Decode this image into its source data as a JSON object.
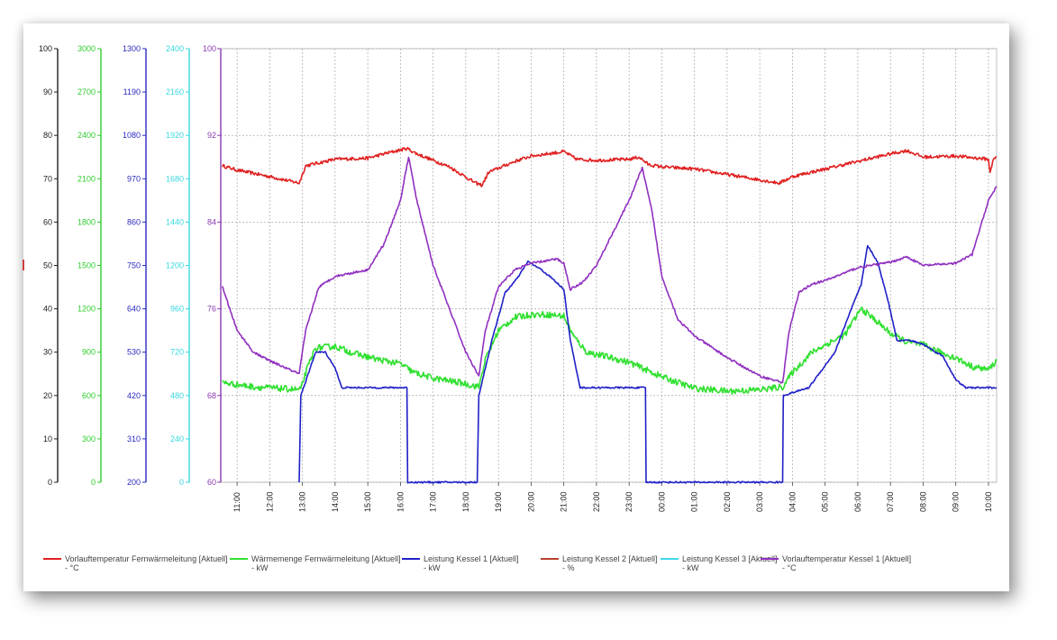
{
  "colors": {
    "grid": "#9a9a9a",
    "plot_border": "#b48bc8",
    "background": "#ffffff"
  },
  "chart_data": {
    "type": "line",
    "grid": true,
    "legend_position": "bottom",
    "x_unit": "hour",
    "x_range": [
      10.5,
      34.25
    ],
    "x_ticks": [
      "11:00",
      "12:00",
      "13:00",
      "14:00",
      "15:00",
      "16:00",
      "17:00",
      "18:00",
      "19:00",
      "20:00",
      "21:00",
      "22:00",
      "23:00",
      "00:00",
      "01:00",
      "02:00",
      "03:00",
      "04:00",
      "05:00",
      "06:00",
      "07:00",
      "08:00",
      "09:00",
      "10:00"
    ],
    "axes": [
      {
        "id": "a1",
        "color": "#202020",
        "range": [
          0,
          100
        ],
        "ticks": [
          "100",
          "90",
          "80",
          "70",
          "60",
          "50",
          "40",
          "30",
          "20",
          "10",
          "0"
        ]
      },
      {
        "id": "a2",
        "color": "#2ecc2e",
        "range": [
          0,
          3000
        ],
        "ticks": [
          "3000",
          "2700",
          "2400",
          "2100",
          "1800",
          "1500",
          "1200",
          "900",
          "600",
          "300",
          "0"
        ]
      },
      {
        "id": "a3",
        "color": "#2a2ac0",
        "range": [
          200,
          1300
        ],
        "ticks": [
          "1300",
          "1190",
          "1080",
          "970",
          "860",
          "750",
          "640",
          "530",
          "420",
          "310",
          "200"
        ]
      },
      {
        "id": "a4",
        "color": "#38d8e0",
        "range": [
          0,
          2400
        ],
        "ticks": [
          "2400",
          "2160",
          "1920",
          "1680",
          "1440",
          "1200",
          "960",
          "720",
          "480",
          "240",
          "0"
        ]
      },
      {
        "id": "a5",
        "color": "#8a3ab0",
        "range": [
          60,
          100
        ],
        "ticks": [
          "100",
          "92",
          "84",
          "76",
          "68",
          "60"
        ]
      }
    ],
    "series": [
      {
        "name": "Vorlauftemperatur Fernwärmeleitung [Aktuell]",
        "unit": "- °C",
        "color": "#e02020",
        "axis": "a5",
        "noise": 0.15,
        "points": [
          [
            10.55,
            89.2
          ],
          [
            11.0,
            88.8
          ],
          [
            12.0,
            88.2
          ],
          [
            12.9,
            87.6
          ],
          [
            13.1,
            89.2
          ],
          [
            14.0,
            89.8
          ],
          [
            15.0,
            89.9
          ],
          [
            15.5,
            90.3
          ],
          [
            16.2,
            90.8
          ],
          [
            16.5,
            90.3
          ],
          [
            17.5,
            89.1
          ],
          [
            18.3,
            87.6
          ],
          [
            18.5,
            87.4
          ],
          [
            18.7,
            88.6
          ],
          [
            19.5,
            89.6
          ],
          [
            20.0,
            90.1
          ],
          [
            21.0,
            90.5
          ],
          [
            21.4,
            89.8
          ],
          [
            22.0,
            89.7
          ],
          [
            23.0,
            89.8
          ],
          [
            23.3,
            90.0
          ],
          [
            23.6,
            89.3
          ],
          [
            24.0,
            89.1
          ],
          [
            25.0,
            88.9
          ],
          [
            26.0,
            88.4
          ],
          [
            27.0,
            87.9
          ],
          [
            27.6,
            87.6
          ],
          [
            28.0,
            88.2
          ],
          [
            29.0,
            88.9
          ],
          [
            30.0,
            89.6
          ],
          [
            31.0,
            90.3
          ],
          [
            31.5,
            90.6
          ],
          [
            32.0,
            90.0
          ],
          [
            33.0,
            90.1
          ],
          [
            34.0,
            89.8
          ],
          [
            34.05,
            88.5
          ],
          [
            34.15,
            89.9
          ],
          [
            34.25,
            90.0
          ]
        ]
      },
      {
        "name": "Wärmemenge Fernwärmeleitung [Aktuell]",
        "unit": "- kW",
        "color": "#30e030",
        "axis": "a2",
        "noise": 22,
        "points": [
          [
            10.55,
            690
          ],
          [
            11.5,
            660
          ],
          [
            12.2,
            650
          ],
          [
            12.95,
            640
          ],
          [
            13.1,
            760
          ],
          [
            13.4,
            930
          ],
          [
            14.0,
            940
          ],
          [
            14.6,
            890
          ],
          [
            15.3,
            850
          ],
          [
            16.0,
            820
          ],
          [
            16.4,
            760
          ],
          [
            17.0,
            720
          ],
          [
            17.8,
            690
          ],
          [
            18.4,
            660
          ],
          [
            18.6,
            850
          ],
          [
            19.0,
            1050
          ],
          [
            19.5,
            1140
          ],
          [
            20.0,
            1160
          ],
          [
            20.5,
            1160
          ],
          [
            21.0,
            1150
          ],
          [
            21.3,
            1010
          ],
          [
            21.7,
            900
          ],
          [
            22.3,
            870
          ],
          [
            23.0,
            830
          ],
          [
            23.5,
            780
          ],
          [
            24.0,
            730
          ],
          [
            25.0,
            650
          ],
          [
            26.0,
            630
          ],
          [
            27.0,
            640
          ],
          [
            27.7,
            660
          ],
          [
            28.0,
            760
          ],
          [
            28.6,
            900
          ],
          [
            29.0,
            950
          ],
          [
            29.6,
            1020
          ],
          [
            30.1,
            1200
          ],
          [
            30.5,
            1130
          ],
          [
            31.0,
            1030
          ],
          [
            31.5,
            970
          ],
          [
            32.0,
            950
          ],
          [
            32.5,
            900
          ],
          [
            33.0,
            860
          ],
          [
            33.5,
            800
          ],
          [
            34.0,
            780
          ],
          [
            34.25,
            840
          ]
        ]
      },
      {
        "name": "Leistung Kessel 1 [Aktuell]",
        "unit": "- kW",
        "color": "#2020c8",
        "axis": "a3",
        "noise": 2,
        "points": [
          [
            12.9,
            200
          ],
          [
            12.95,
            420
          ],
          [
            13.2,
            480
          ],
          [
            13.4,
            530
          ],
          [
            13.7,
            530
          ],
          [
            14.0,
            490
          ],
          [
            14.2,
            440
          ],
          [
            14.6,
            440
          ],
          [
            16.2,
            440
          ],
          [
            16.22,
            200
          ],
          [
            18.35,
            200
          ],
          [
            18.4,
            420
          ],
          [
            18.8,
            560
          ],
          [
            19.2,
            680
          ],
          [
            19.6,
            720
          ],
          [
            19.9,
            760
          ],
          [
            20.3,
            740
          ],
          [
            20.6,
            720
          ],
          [
            21.0,
            690
          ],
          [
            21.2,
            560
          ],
          [
            21.5,
            440
          ],
          [
            23.5,
            440
          ],
          [
            23.52,
            200
          ],
          [
            27.7,
            200
          ],
          [
            27.72,
            420
          ],
          [
            28.5,
            440
          ],
          [
            29.3,
            530
          ],
          [
            29.8,
            640
          ],
          [
            30.1,
            700
          ],
          [
            30.3,
            800
          ],
          [
            30.6,
            760
          ],
          [
            30.9,
            670
          ],
          [
            31.2,
            560
          ],
          [
            31.6,
            560
          ],
          [
            32.0,
            550
          ],
          [
            32.6,
            520
          ],
          [
            33.0,
            460
          ],
          [
            33.3,
            440
          ],
          [
            34.25,
            440
          ]
        ]
      },
      {
        "name": "Leistung Kessel 2 [Aktuell]",
        "unit": "- %",
        "color": "#b84030",
        "axis": "a1",
        "points": []
      },
      {
        "name": "Leistung Kessel 3 [Aktuell]",
        "unit": "- kW",
        "color": "#40d8e8",
        "axis": "a4",
        "points": []
      },
      {
        "name": "Vorlauftemperatur Kessel 1 [Aktuell]",
        "unit": "- °C",
        "color": "#9030c0",
        "axis": "a5",
        "noise": 0.1,
        "points": [
          [
            10.55,
            78.0
          ],
          [
            11.0,
            74.0
          ],
          [
            11.5,
            72.0
          ],
          [
            12.0,
            71.2
          ],
          [
            12.9,
            70.0
          ],
          [
            13.1,
            74.0
          ],
          [
            13.5,
            78.0
          ],
          [
            14.0,
            79.0
          ],
          [
            15.0,
            79.6
          ],
          [
            15.5,
            82.0
          ],
          [
            16.0,
            86.0
          ],
          [
            16.25,
            90.0
          ],
          [
            16.5,
            86.0
          ],
          [
            17.0,
            80.0
          ],
          [
            17.5,
            76.0
          ],
          [
            18.0,
            72.0
          ],
          [
            18.4,
            69.8
          ],
          [
            18.6,
            74.0
          ],
          [
            19.0,
            78.0
          ],
          [
            19.5,
            79.6
          ],
          [
            20.0,
            80.2
          ],
          [
            20.8,
            80.6
          ],
          [
            21.0,
            80.2
          ],
          [
            21.2,
            77.8
          ],
          [
            21.6,
            78.5
          ],
          [
            22.0,
            80.0
          ],
          [
            22.5,
            83.0
          ],
          [
            23.0,
            86.0
          ],
          [
            23.4,
            89.0
          ],
          [
            23.7,
            85.0
          ],
          [
            24.0,
            79.0
          ],
          [
            24.5,
            75.0
          ],
          [
            25.0,
            73.5
          ],
          [
            26.0,
            71.5
          ],
          [
            27.0,
            69.8
          ],
          [
            27.7,
            69.2
          ],
          [
            27.9,
            74.0
          ],
          [
            28.2,
            77.5
          ],
          [
            28.6,
            78.3
          ],
          [
            29.0,
            78.6
          ],
          [
            29.5,
            79.2
          ],
          [
            30.0,
            79.8
          ],
          [
            31.0,
            80.3
          ],
          [
            31.5,
            80.8
          ],
          [
            32.0,
            80.0
          ],
          [
            33.0,
            80.2
          ],
          [
            33.5,
            81.0
          ],
          [
            34.0,
            86.0
          ],
          [
            34.25,
            87.3
          ]
        ]
      }
    ]
  }
}
